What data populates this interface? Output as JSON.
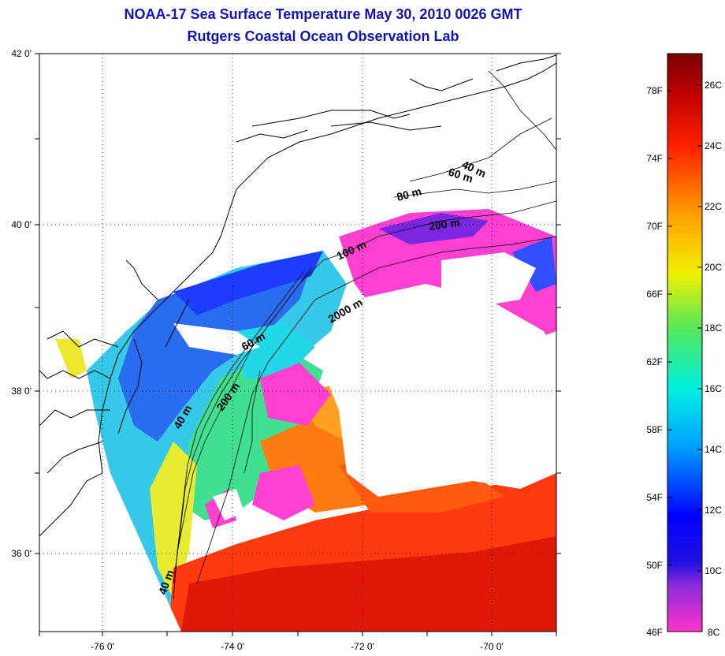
{
  "title_line1": "NOAA-17 Sea Surface Temperature May 30, 2010 0026 GMT",
  "title_line2": "Rutgers Coastal Ocean Observation Lab",
  "map": {
    "lat_labels": [
      "42 0'",
      "40 0'",
      "38 0'",
      "36 0'"
    ],
    "lon_labels": [
      "-76 0'",
      "-74 0'",
      "-72 0'",
      "-70 0'"
    ],
    "contour_labels": [
      "40 m",
      "60 m",
      "80 m",
      "100 m",
      "200 m",
      "2000 m",
      "60 m",
      "200 m",
      "40 m",
      "40 m"
    ]
  },
  "colorbar": {
    "fahrenheit_labels": [
      "78F",
      "74F",
      "70F",
      "66F",
      "62F",
      "58F",
      "54F",
      "50F",
      "46F"
    ],
    "celsius_labels": [
      "26C",
      "24C",
      "22C",
      "20C",
      "18C",
      "16C",
      "14C",
      "12C",
      "10C",
      "8C"
    ],
    "colors": [
      "#ff33cc",
      "#5a1acc",
      "#0000ff",
      "#00aaff",
      "#00f0e0",
      "#60ee40",
      "#f0f000",
      "#ffa000",
      "#ff2000",
      "#c00000",
      "#800000"
    ]
  }
}
